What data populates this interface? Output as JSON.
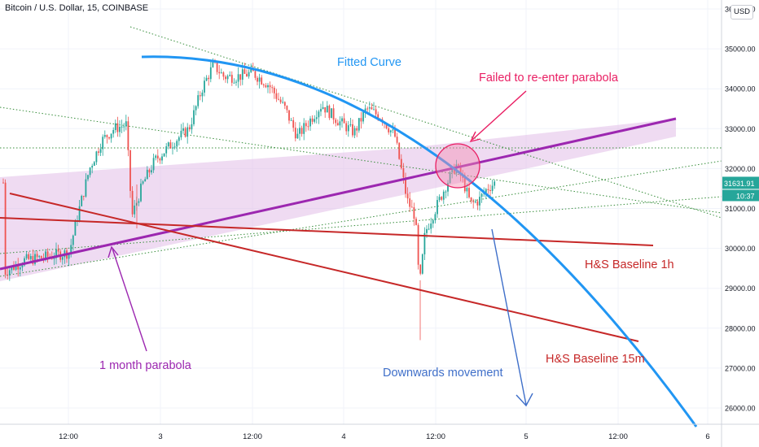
{
  "header": {
    "symbol": "Bitcoin / U.S. Dollar, 15, COINBASE"
  },
  "currency_button": "USD",
  "price_axis": {
    "ticks": [
      "36000.00",
      "35000.00",
      "34000.00",
      "33000.00",
      "32000.00",
      "31000.00",
      "30000.00",
      "29000.00",
      "28000.00",
      "27000.00",
      "26000.00"
    ],
    "ymin": 25400,
    "ymax": 36100
  },
  "time_axis": {
    "ticks": [
      "12:00",
      "3",
      "12:00",
      "4",
      "12:00",
      "5",
      "12:00",
      "6"
    ]
  },
  "last_price": {
    "price": "31631.91",
    "countdown": "10:37",
    "value": 31631.91,
    "color": "#26a69a"
  },
  "annotations": {
    "fitted_curve": "Fitted Curve",
    "failed": "Failed to re-enter parabola",
    "hs_1h": "H&S Baseline 1h",
    "hs_15m": "H&S Baseline 15m",
    "downwards": "Downwards movement",
    "one_month": "1 month parabola"
  },
  "colors": {
    "fitted_curve": "#2196f3",
    "parabola_line": "#9c27b0",
    "parabola_fill": "#e1bee7",
    "baseline": "#c62828",
    "failed_text": "#e91e63",
    "failed_circle": "#f48fb1",
    "annotation_purple": "#9c27b0",
    "downwards_arrow": "#3f6fc9",
    "guide_lines": "#388e3c",
    "up_candle": "#26a69a",
    "down_candle": "#ef5350"
  },
  "chart_data": {
    "type": "candlestick",
    "title": "Bitcoin / U.S. Dollar, 15, COINBASE",
    "ylim": [
      25400,
      36100
    ],
    "yticks": [
      26000,
      27000,
      28000,
      29000,
      30000,
      31000,
      32000,
      33000,
      34000,
      35000,
      36000
    ],
    "xticks": [
      "12:00",
      "3",
      "12:00",
      "4",
      "12:00",
      "5",
      "12:00",
      "6"
    ],
    "close_path": [
      {
        "t": "2 02:00",
        "price": 29400
      },
      {
        "t": "2 06:00",
        "price": 29800
      },
      {
        "t": "2 10:00",
        "price": 29900
      },
      {
        "t": "2 14:00",
        "price": 30800
      },
      {
        "t": "2 18:00",
        "price": 32400
      },
      {
        "t": "2 20:00",
        "price": 33000
      },
      {
        "t": "2 22:00",
        "price": 33100
      },
      {
        "t": "3 00:00",
        "price": 30800
      },
      {
        "t": "3 04:00",
        "price": 32300
      },
      {
        "t": "3 08:00",
        "price": 33200
      },
      {
        "t": "3 12:00",
        "price": 34600
      },
      {
        "t": "3 14:00",
        "price": 34300
      },
      {
        "t": "3 18:00",
        "price": 34100
      },
      {
        "t": "3 22:00",
        "price": 32900
      },
      {
        "t": "4 02:00",
        "price": 33200
      },
      {
        "t": "4 06:00",
        "price": 33500
      },
      {
        "t": "4 08:00",
        "price": 32200
      },
      {
        "t": "4 10:00",
        "price": 29000
      },
      {
        "t": "4 12:00",
        "price": 31000
      },
      {
        "t": "4 14:00",
        "price": 32200
      },
      {
        "t": "4 16:00",
        "price": 31200
      },
      {
        "t": "4 18:00",
        "price": 31650
      }
    ],
    "range": {
      "high": 34800,
      "low": 27700
    },
    "last_price": 31631.91
  }
}
